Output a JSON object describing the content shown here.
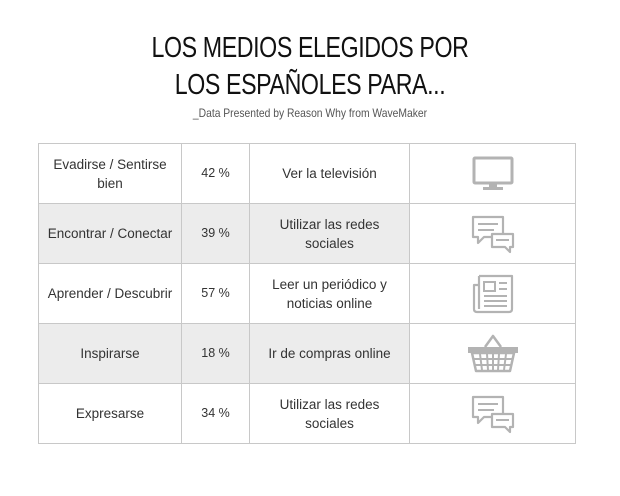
{
  "header": {
    "title_line1": "LOS MEDIOS ELEGIDOS POR",
    "title_line2": "LOS ESPAÑOLES PARA...",
    "subtitle": "_Data Presented by Reason Why from WaveMaker"
  },
  "rows": [
    {
      "purpose": "Evadirse / Sentirse bien",
      "percent": "42 %",
      "medium": "Ver la televisión",
      "icon": "television-icon"
    },
    {
      "purpose": "Encontrar / Conectar",
      "percent": "39 %",
      "medium": "Utilizar las redes sociales",
      "icon": "chat-bubbles-icon"
    },
    {
      "purpose": "Aprender / Descubrir",
      "percent": "57 %",
      "medium": "Leer un periódico y noticias online",
      "icon": "newspaper-icon"
    },
    {
      "purpose": "Inspirarse",
      "percent": "18 %",
      "medium": "Ir de compras online",
      "icon": "shopping-basket-icon"
    },
    {
      "purpose": "Expresarse",
      "percent": "34 %",
      "medium": "Utilizar las redes sociales",
      "icon": "chat-bubbles-icon"
    }
  ],
  "colors": {
    "shaded_row": "#ececec",
    "border": "#c8c8c8",
    "icon": "#b3b3b3"
  }
}
